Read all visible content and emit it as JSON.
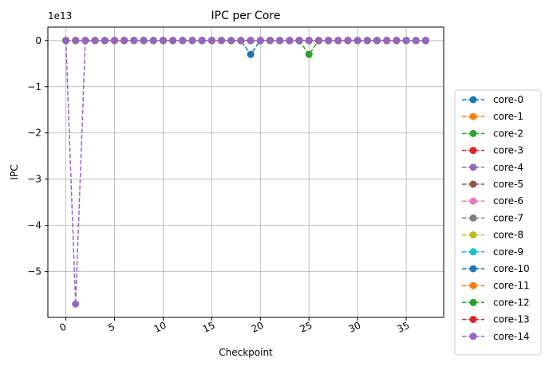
{
  "chart_data": {
    "type": "line",
    "title": "IPC per Core",
    "xlabel": "Checkpoint",
    "ylabel": "IPC",
    "offset_label": "1e13",
    "xlim": [
      -1.85,
      38.85
    ],
    "ylim": [
      -5.99,
      0.29
    ],
    "xticks": [
      0,
      5,
      10,
      15,
      20,
      25,
      30,
      35
    ],
    "xtick_labels": [
      "0",
      "5",
      "10",
      "15",
      "20",
      "25",
      "30",
      "35"
    ],
    "yticks": [
      0,
      -1,
      -2,
      -3,
      -4,
      -5
    ],
    "ytick_labels": [
      "0",
      "−1",
      "−2",
      "−3",
      "−4",
      "−5"
    ],
    "grid": true,
    "legend_position": "outside-right",
    "x": [
      0,
      1,
      2,
      3,
      4,
      5,
      6,
      7,
      8,
      9,
      10,
      11,
      12,
      13,
      14,
      15,
      16,
      17,
      18,
      19,
      20,
      21,
      22,
      23,
      24,
      25,
      26,
      27,
      28,
      29,
      30,
      31,
      32,
      33,
      34,
      35,
      36,
      37
    ],
    "series": [
      {
        "name": "core-0",
        "color": "#1f77b4",
        "values": [
          0,
          0,
          0,
          0,
          0,
          0,
          0,
          0,
          0,
          0,
          0,
          0,
          0,
          0,
          0,
          0,
          0,
          0,
          0,
          -0.3,
          0,
          0,
          0,
          0,
          0,
          0,
          0,
          0,
          0,
          0,
          0,
          0,
          0,
          0,
          0,
          0,
          0,
          0
        ]
      },
      {
        "name": "core-1",
        "color": "#ff7f0e",
        "values": [
          0,
          0,
          0,
          0,
          0,
          0,
          0,
          0,
          0,
          0,
          0,
          0,
          0,
          0,
          0,
          0,
          0,
          0,
          0,
          0,
          0,
          0,
          0,
          0,
          0,
          0,
          0,
          0,
          0,
          0,
          0,
          0,
          0,
          0,
          0,
          0,
          0,
          0
        ]
      },
      {
        "name": "core-2",
        "color": "#2ca02c",
        "values": [
          0,
          0,
          0,
          0,
          0,
          0,
          0,
          0,
          0,
          0,
          0,
          0,
          0,
          0,
          0,
          0,
          0,
          0,
          0,
          0,
          0,
          0,
          0,
          0,
          0,
          -0.3,
          0,
          0,
          0,
          0,
          0,
          0,
          0,
          0,
          0,
          0,
          0,
          0
        ]
      },
      {
        "name": "core-3",
        "color": "#d62728",
        "values": [
          0,
          0,
          0,
          0,
          0,
          0,
          0,
          0,
          0,
          0,
          0,
          0,
          0,
          0,
          0,
          0,
          0,
          0,
          0,
          0,
          0,
          0,
          0,
          0,
          0,
          0,
          0,
          0,
          0,
          0,
          0,
          0,
          0,
          0,
          0,
          0,
          0,
          0
        ]
      },
      {
        "name": "core-4",
        "color": "#9467bd",
        "values": [
          0,
          -5.7,
          0,
          0,
          0,
          0,
          0,
          0,
          0,
          0,
          0,
          0,
          0,
          0,
          0,
          0,
          0,
          0,
          0,
          0,
          0,
          0,
          0,
          0,
          0,
          0,
          0,
          0,
          0,
          0,
          0,
          0,
          0,
          0,
          0,
          0,
          0,
          0
        ]
      },
      {
        "name": "core-5",
        "color": "#8c564b",
        "values": [
          0,
          0,
          0,
          0,
          0,
          0,
          0,
          0,
          0,
          0,
          0,
          0,
          0,
          0,
          0,
          0,
          0,
          0,
          0,
          0,
          0,
          0,
          0,
          0,
          0,
          0,
          0,
          0,
          0,
          0,
          0,
          0,
          0,
          0,
          0,
          0,
          0,
          0
        ]
      },
      {
        "name": "core-6",
        "color": "#e377c2",
        "values": [
          0,
          0,
          0,
          0,
          0,
          0,
          0,
          0,
          0,
          0,
          0,
          0,
          0,
          0,
          0,
          0,
          0,
          0,
          0,
          0,
          0,
          0,
          0,
          0,
          0,
          0,
          0,
          0,
          0,
          0,
          0,
          0,
          0,
          0,
          0,
          0,
          0,
          0
        ]
      },
      {
        "name": "core-7",
        "color": "#7f7f7f",
        "values": [
          0,
          0,
          0,
          0,
          0,
          0,
          0,
          0,
          0,
          0,
          0,
          0,
          0,
          0,
          0,
          0,
          0,
          0,
          0,
          0,
          0,
          0,
          0,
          0,
          0,
          0,
          0,
          0,
          0,
          0,
          0,
          0,
          0,
          0,
          0,
          0,
          0,
          0
        ]
      },
      {
        "name": "core-8",
        "color": "#bcbd22",
        "values": [
          0,
          0,
          0,
          0,
          0,
          0,
          0,
          0,
          0,
          0,
          0,
          0,
          0,
          0,
          0,
          0,
          0,
          0,
          0,
          0,
          0,
          0,
          0,
          0,
          0,
          0,
          0,
          0,
          0,
          0,
          0,
          0,
          0,
          0,
          0,
          0,
          0,
          0
        ]
      },
      {
        "name": "core-9",
        "color": "#17becf",
        "values": [
          0,
          0,
          0,
          0,
          0,
          0,
          0,
          0,
          0,
          0,
          0,
          0,
          0,
          0,
          0,
          0,
          0,
          0,
          0,
          0,
          0,
          0,
          0,
          0,
          0,
          0,
          0,
          0,
          0,
          0,
          0,
          0,
          0,
          0,
          0,
          0,
          0,
          0
        ]
      },
      {
        "name": "core-10",
        "color": "#1f77b4",
        "values": [
          0,
          0,
          0,
          0,
          0,
          0,
          0,
          0,
          0,
          0,
          0,
          0,
          0,
          0,
          0,
          0,
          0,
          0,
          0,
          0,
          0,
          0,
          0,
          0,
          0,
          0,
          0,
          0,
          0,
          0,
          0,
          0,
          0,
          0,
          0,
          0,
          0,
          0
        ]
      },
      {
        "name": "core-11",
        "color": "#ff7f0e",
        "values": [
          0,
          0,
          0,
          0,
          0,
          0,
          0,
          0,
          0,
          0,
          0,
          0,
          0,
          0,
          0,
          0,
          0,
          0,
          0,
          0,
          0,
          0,
          0,
          0,
          0,
          0,
          0,
          0,
          0,
          0,
          0,
          0,
          0,
          0,
          0,
          0,
          0,
          0
        ]
      },
      {
        "name": "core-12",
        "color": "#2ca02c",
        "values": [
          0,
          0,
          0,
          0,
          0,
          0,
          0,
          0,
          0,
          0,
          0,
          0,
          0,
          0,
          0,
          0,
          0,
          0,
          0,
          0,
          0,
          0,
          0,
          0,
          0,
          0,
          0,
          0,
          0,
          0,
          0,
          0,
          0,
          0,
          0,
          0,
          0,
          0
        ]
      },
      {
        "name": "core-13",
        "color": "#d62728",
        "values": [
          0,
          0,
          0,
          0,
          0,
          0,
          0,
          0,
          0,
          0,
          0,
          0,
          0,
          0,
          0,
          0,
          0,
          0,
          0,
          0,
          0,
          0,
          0,
          0,
          0,
          0,
          0,
          0,
          0,
          0,
          0,
          0,
          0,
          0,
          0,
          0,
          0,
          0
        ]
      },
      {
        "name": "core-14",
        "color": "#9467bd",
        "values": [
          0,
          0,
          0,
          0,
          0,
          0,
          0,
          0,
          0,
          0,
          0,
          0,
          0,
          0,
          0,
          0,
          0,
          0,
          0,
          0,
          0,
          0,
          0,
          0,
          0,
          0,
          0,
          0,
          0,
          0,
          0,
          0,
          0,
          0,
          0,
          0,
          0,
          0
        ]
      }
    ]
  }
}
